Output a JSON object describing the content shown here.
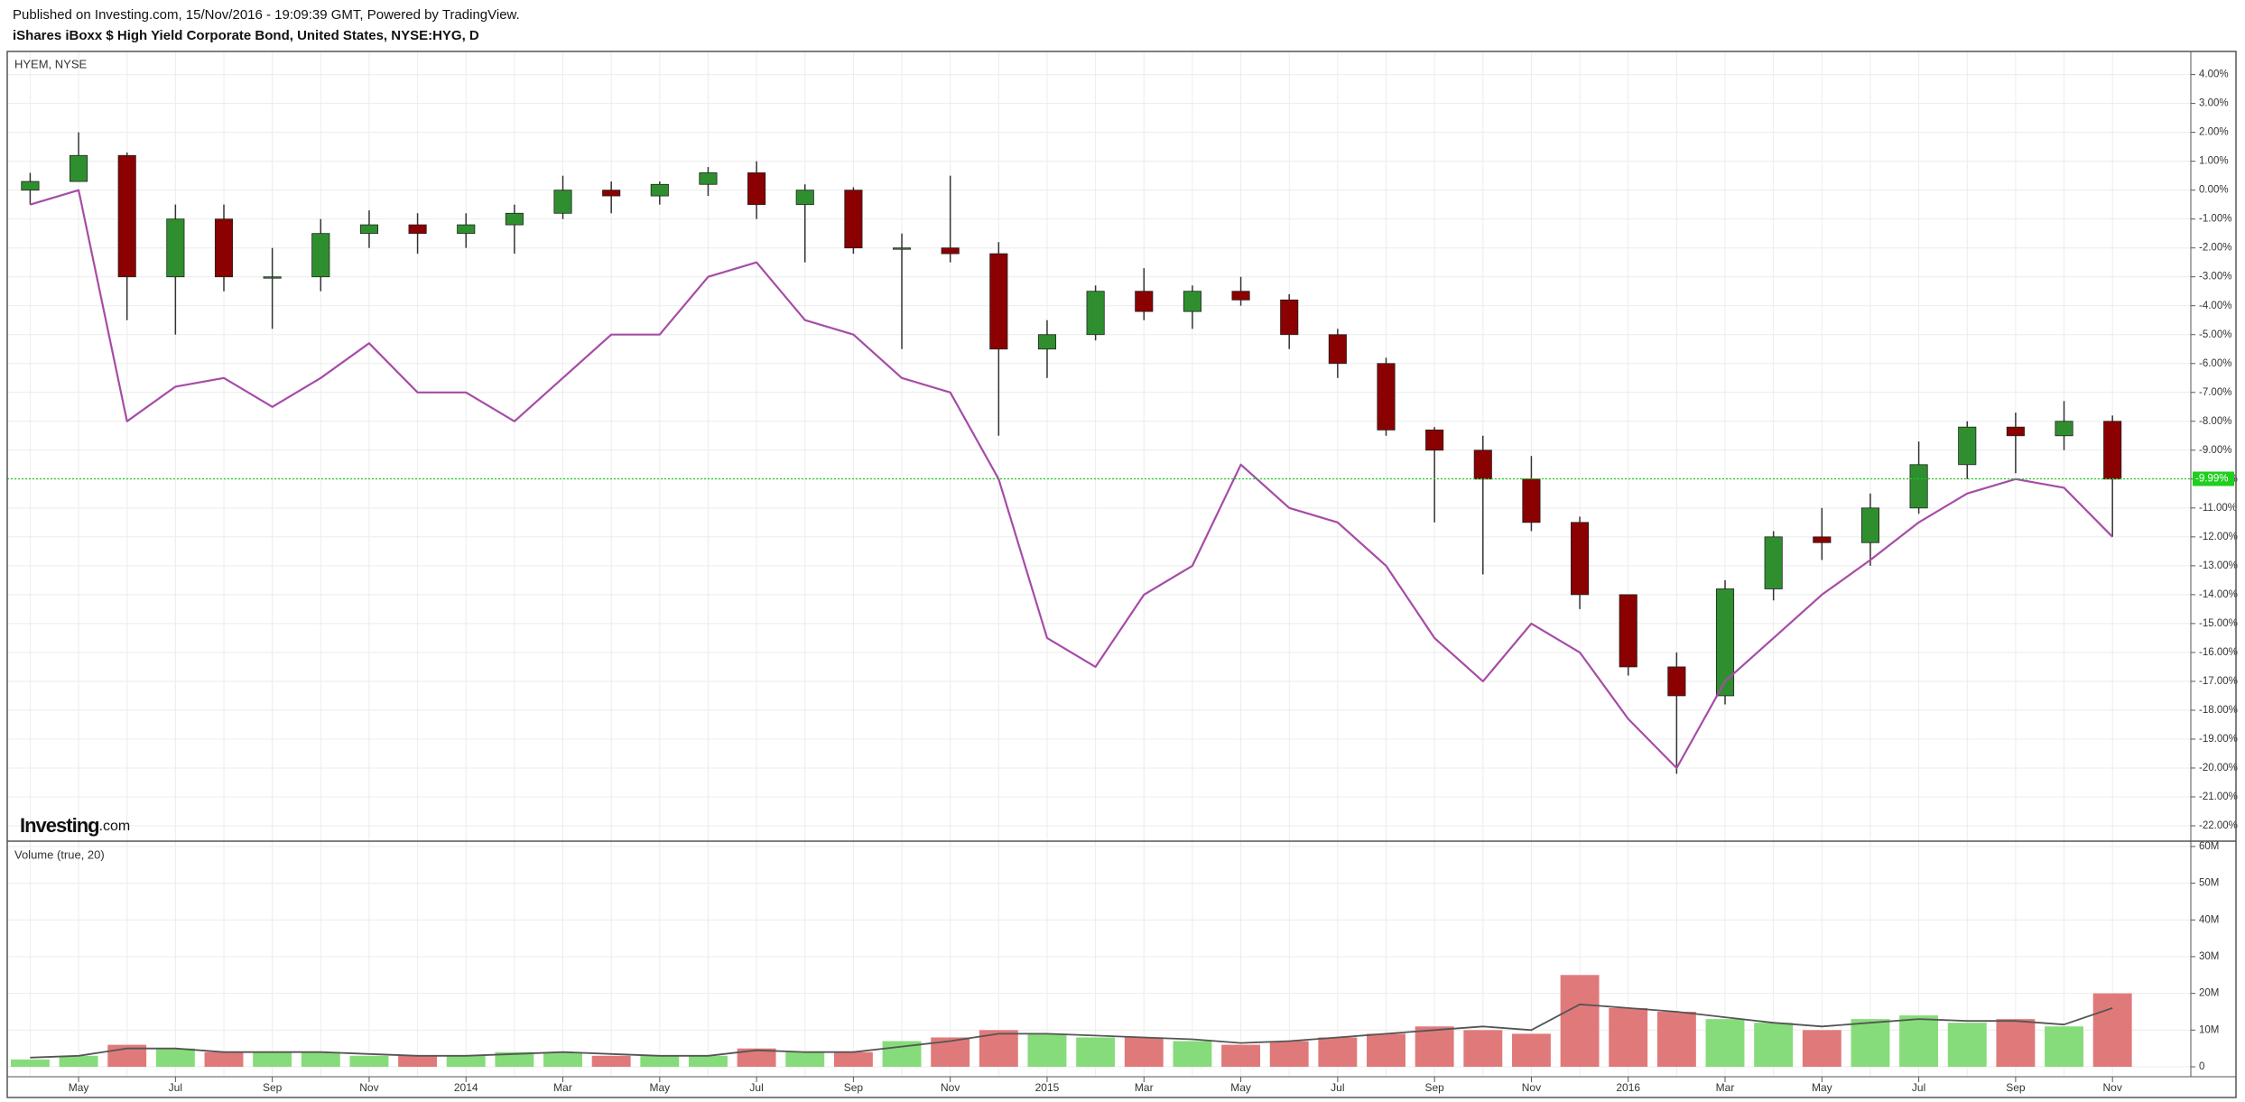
{
  "header": {
    "published": "Published on Investing.com, 15/Nov/2016 - 19:09:39 GMT, Powered by TradingView.",
    "title": "iShares iBoxx $ High Yield Corporate Bond, United States, NYSE:HYG, D"
  },
  "logo": {
    "brand": "Investing",
    "suffix": ".com"
  },
  "chart_data": [
    {
      "type": "candlestick",
      "series": [
        {
          "type": "candlestick",
          "up_color": "#2f8f2f",
          "down_color": "#8b0000",
          "open": [
            0,
            0.3,
            1.2,
            -3,
            -1,
            -3,
            -3,
            -1.5,
            -1.2,
            -1.5,
            -1.2,
            -0.8,
            0,
            -0.2,
            0.2,
            0.6,
            -0.5,
            0,
            -2,
            -2,
            -2.2,
            -5.5,
            -5,
            -3.5,
            -4.2,
            -3.5,
            -3.8,
            -5,
            -6,
            -8.3,
            -9,
            -10,
            -11.5,
            -14,
            -16.5,
            -17.5,
            -13.8,
            -12,
            -12.2,
            -11,
            -9.5,
            -8.2,
            -8.5,
            -8
          ],
          "high": [
            0.6,
            2,
            1.3,
            -0.5,
            -0.5,
            -2,
            -1,
            -0.7,
            -0.8,
            -0.8,
            -0.5,
            0.5,
            0.3,
            0.3,
            0.8,
            1,
            0.2,
            0.1,
            -1.5,
            0.5,
            -1.8,
            -4.5,
            -3.3,
            -2.7,
            -3.3,
            -3,
            -3.6,
            -4.8,
            -5.8,
            -8.2,
            -8.5,
            -9.2,
            -11.3,
            -14,
            -16,
            -13.5,
            -11.8,
            -11,
            -10.5,
            -8.7,
            -8,
            -7.7,
            -7.3,
            -7.8
          ],
          "low": [
            -0.5,
            0.3,
            -4.5,
            -5,
            -3.5,
            -4.8,
            -3.5,
            -2,
            -2.2,
            -2,
            -2.2,
            -1,
            -0.8,
            -0.5,
            -0.2,
            -1,
            -2.5,
            -2.2,
            -5.5,
            -2.5,
            -8.5,
            -6.5,
            -5.2,
            -4.5,
            -4.8,
            -4,
            -5.5,
            -6.5,
            -8.5,
            -11.5,
            -13.3,
            -11.8,
            -14.5,
            -16.8,
            -20.2,
            -17.8,
            -14.2,
            -12.8,
            -13,
            -11.2,
            -10,
            -9.8,
            -9,
            -12
          ],
          "close": [
            0.3,
            1.2,
            -3,
            -1,
            -3,
            -3,
            -1.5,
            -1.2,
            -1.5,
            -1.2,
            -0.8,
            0,
            -0.2,
            0.2,
            0.6,
            -0.5,
            0,
            -2,
            -2,
            -2.2,
            -5.5,
            -5,
            -3.5,
            -4.2,
            -3.5,
            -3.8,
            -5,
            -6,
            -8.3,
            -9,
            -10,
            -11.5,
            -14,
            -16.5,
            -17.5,
            -13.8,
            -12,
            -12.2,
            -11,
            -9.5,
            -8.2,
            -8.5,
            -8,
            -10
          ]
        },
        {
          "type": "line",
          "name": "HYEM, NYSE",
          "color": "#a64ca6",
          "values": [
            -0.5,
            0,
            -8,
            -6.8,
            -6.5,
            -7.5,
            -6.5,
            -5.3,
            -7,
            -7,
            -8,
            -6.5,
            -5,
            -5,
            -3,
            -2.5,
            -4.5,
            -5,
            -6.5,
            -7,
            -10,
            -15.5,
            -16.5,
            -14,
            -13,
            -9.5,
            -11,
            -11.5,
            -13,
            -15.5,
            -17,
            -15,
            -16,
            -18.3,
            -20,
            -17,
            -15.5,
            -14,
            -12.8,
            -11.5,
            -10.5,
            -10,
            -10.3,
            -12
          ]
        }
      ],
      "price_line": {
        "value": -9.99,
        "label": "-9.99%",
        "color": "#1fcf1f"
      },
      "ylim": [
        -22.5,
        4.8
      ],
      "yticks": [
        {
          "value": 4,
          "label": "4.00%"
        },
        {
          "value": 3,
          "label": "3.00%"
        },
        {
          "value": 2,
          "label": "2.00%"
        },
        {
          "value": 1,
          "label": "1.00%"
        },
        {
          "value": 0,
          "label": "0.00%"
        },
        {
          "value": -1,
          "label": "-1.00%"
        },
        {
          "value": -2,
          "label": "-2.00%"
        },
        {
          "value": -3,
          "label": "-3.00%"
        },
        {
          "value": -4,
          "label": "-4.00%"
        },
        {
          "value": -5,
          "label": "-5.00%"
        },
        {
          "value": -6,
          "label": "-6.00%"
        },
        {
          "value": -7,
          "label": "-7.00%"
        },
        {
          "value": -8,
          "label": "-8.00%"
        },
        {
          "value": -9,
          "label": "-9.00%"
        },
        {
          "value": -10,
          "label": "-10.00%"
        },
        {
          "value": -11,
          "label": "-11.00%"
        },
        {
          "value": -12,
          "label": "-12.00%"
        },
        {
          "value": -13,
          "label": "-13.00%"
        },
        {
          "value": -14,
          "label": "-14.00%"
        },
        {
          "value": -15,
          "label": "-15.00%"
        },
        {
          "value": -16,
          "label": "-16.00%"
        },
        {
          "value": -17,
          "label": "-17.00%"
        },
        {
          "value": -18,
          "label": "-18.00%"
        },
        {
          "value": -19,
          "label": "-19.00%"
        },
        {
          "value": -20,
          "label": "-20.00%"
        },
        {
          "value": -21,
          "label": "-21.00%"
        },
        {
          "value": -22,
          "label": "-22.00%"
        }
      ],
      "grid": true
    },
    {
      "type": "bar",
      "title": "Volume (true, 20)",
      "categories": [
        null,
        "May",
        null,
        "Jul",
        null,
        "Sep",
        null,
        "Nov",
        null,
        "2014",
        null,
        "Mar",
        null,
        "May",
        null,
        "Jul",
        null,
        "Sep",
        null,
        "Nov",
        null,
        "2015",
        null,
        "Mar",
        null,
        "May",
        null,
        "Jul",
        null,
        "Sep",
        null,
        "Nov",
        null,
        "2016",
        null,
        "Mar",
        null,
        "May",
        null,
        "Jul",
        null,
        "Sep",
        null,
        "Nov"
      ],
      "series": [
        {
          "type": "bar",
          "up_color": "#86dc7a",
          "down_color": "#e07a7a",
          "values": [
            2000000,
            3000000,
            6000000,
            5000000,
            4000000,
            4000000,
            4000000,
            3000000,
            3000000,
            3000000,
            4000000,
            4000000,
            3000000,
            3000000,
            3000000,
            5000000,
            4000000,
            4000000,
            7000000,
            8000000,
            10000000,
            9000000,
            8000000,
            8000000,
            7000000,
            6000000,
            7000000,
            8000000,
            9000000,
            11000000,
            10000000,
            9000000,
            25000000,
            16000000,
            15000000,
            13000000,
            12000000,
            10000000,
            13000000,
            14000000,
            12000000,
            13000000,
            11000000,
            20000000
          ]
        },
        {
          "type": "line",
          "color": "#555555",
          "values": [
            2500000,
            3000000,
            5000000,
            5000000,
            4000000,
            4000000,
            4000000,
            3500000,
            3000000,
            3000000,
            3500000,
            4000000,
            3500000,
            3000000,
            3000000,
            4500000,
            4000000,
            4000000,
            5500000,
            7000000,
            9000000,
            9000000,
            8500000,
            8000000,
            7500000,
            6500000,
            7000000,
            8000000,
            9000000,
            10000000,
            11000000,
            10000000,
            17000000,
            16000000,
            15000000,
            13500000,
            12000000,
            11000000,
            12000000,
            13000000,
            12500000,
            12500000,
            11500000,
            16000000
          ]
        }
      ],
      "ylim": [
        -2700000,
        61200000
      ],
      "yticks": [
        0,
        {
          "value": 10000000,
          "label": "10M"
        },
        {
          "value": 20000000,
          "label": "20M"
        },
        {
          "value": 30000000,
          "label": "30M"
        },
        {
          "value": 40000000,
          "label": "40M"
        },
        {
          "value": 50000000,
          "label": "50M"
        },
        {
          "value": 60000000,
          "label": "60M"
        }
      ],
      "grid": true
    }
  ]
}
